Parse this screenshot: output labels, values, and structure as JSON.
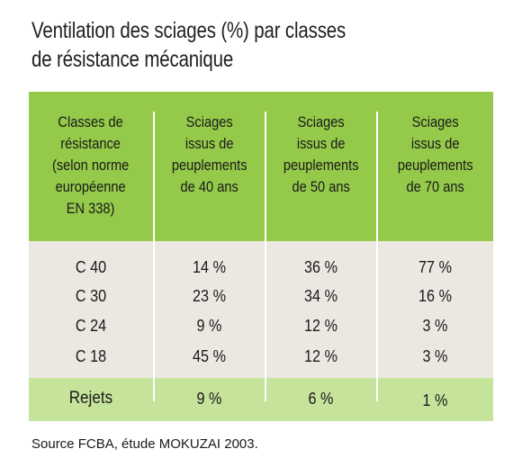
{
  "title": {
    "line1": "Ventilation des sciages (%) par classes",
    "line2": "de résistance mécanique"
  },
  "table": {
    "headers": [
      [
        "Classes de",
        "résistance",
        "(selon norme",
        "européenne",
        "EN 338)"
      ],
      [
        "Sciages",
        "issus de",
        "peuplements",
        "de 40 ans"
      ],
      [
        "Sciages",
        "issus de",
        "peuplements",
        "de 50 ans"
      ],
      [
        "Sciages",
        "issus de",
        "peuplements",
        "de 70 ans"
      ]
    ],
    "rows": [
      [
        "C 40",
        "14 %",
        "36 %",
        "77 %"
      ],
      [
        "C 30",
        "23 %",
        "34 %",
        "16 %"
      ],
      [
        "C 24",
        "9 %",
        "12 %",
        "3 %"
      ],
      [
        "C 18",
        "45 %",
        "12 %",
        "3 %"
      ]
    ],
    "footer_row": [
      "Rejets",
      "9 %",
      "6 %",
      "1 %"
    ]
  },
  "colors": {
    "header_bg": "#94c94a",
    "body_bg": "#ebe8e2",
    "footer_bg": "#c5e39b"
  },
  "source": "Source FCBA, étude MOKUZAI 2003."
}
